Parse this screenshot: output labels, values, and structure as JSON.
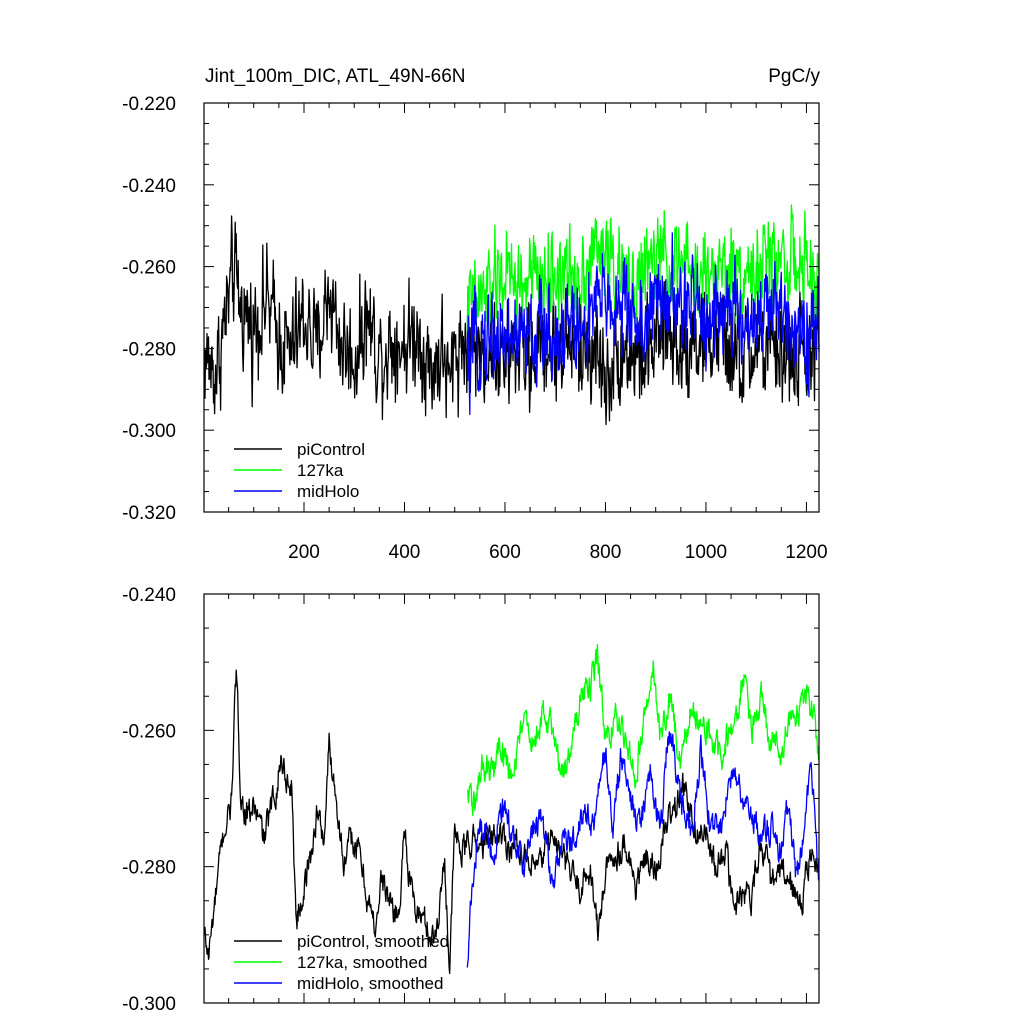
{
  "chart_data": [
    {
      "type": "line",
      "title": "Jint_100m_DIC, ATL_49N-66N",
      "units": "PgC/y",
      "xlim": [
        1,
        1225
      ],
      "ylim": [
        -0.32,
        -0.22
      ],
      "xticks": [
        "200",
        "400",
        "600",
        "800",
        "1000",
        "1200"
      ],
      "yticks": [
        "-0.220",
        "-0.240",
        "-0.260",
        "-0.280",
        "-0.300",
        "-0.320"
      ],
      "legend_position": "bottom-left",
      "series": [
        {
          "name": "piControl",
          "color": "#000000",
          "x_range": [
            1,
            1225
          ],
          "x": [
            1,
            25,
            50,
            60,
            75,
            100,
            125,
            150,
            175,
            200,
            225,
            250,
            275,
            300,
            325,
            350,
            375,
            400,
            425,
            450,
            475,
            490,
            500,
            525,
            550,
            575,
            600,
            625,
            650,
            675,
            700,
            725,
            750,
            775,
            800,
            825,
            850,
            875,
            900,
            925,
            950,
            975,
            1000,
            1025,
            1050,
            1075,
            1100,
            1125,
            1150,
            1175,
            1200,
            1225
          ],
          "values": [
            -0.282,
            -0.286,
            -0.268,
            -0.262,
            -0.27,
            -0.275,
            -0.268,
            -0.277,
            -0.281,
            -0.272,
            -0.28,
            -0.266,
            -0.279,
            -0.283,
            -0.272,
            -0.282,
            -0.278,
            -0.279,
            -0.276,
            -0.285,
            -0.281,
            -0.29,
            -0.28,
            -0.278,
            -0.281,
            -0.28,
            -0.284,
            -0.279,
            -0.283,
            -0.278,
            -0.281,
            -0.278,
            -0.282,
            -0.279,
            -0.287,
            -0.28,
            -0.281,
            -0.283,
            -0.279,
            -0.276,
            -0.28,
            -0.277,
            -0.279,
            -0.276,
            -0.282,
            -0.284,
            -0.279,
            -0.282,
            -0.281,
            -0.283,
            -0.28,
            -0.281
          ],
          "noise": 0.012
        },
        {
          "name": "127ka",
          "color": "#00ff00",
          "x_range": [
            525,
            1225
          ],
          "x": [
            525,
            550,
            575,
            600,
            625,
            650,
            675,
            700,
            725,
            750,
            775,
            800,
            825,
            850,
            875,
            900,
            925,
            950,
            975,
            1000,
            1025,
            1050,
            1075,
            1100,
            1125,
            1150,
            1175,
            1200,
            1225
          ],
          "values": [
            -0.27,
            -0.268,
            -0.265,
            -0.262,
            -0.265,
            -0.263,
            -0.263,
            -0.262,
            -0.262,
            -0.262,
            -0.257,
            -0.256,
            -0.262,
            -0.265,
            -0.262,
            -0.258,
            -0.259,
            -0.26,
            -0.262,
            -0.262,
            -0.26,
            -0.261,
            -0.26,
            -0.262,
            -0.258,
            -0.257,
            -0.259,
            -0.262,
            -0.264
          ],
          "noise": 0.01
        },
        {
          "name": "midHolo",
          "color": "#0000ff",
          "x_range": [
            525,
            1225
          ],
          "x": [
            525,
            550,
            575,
            600,
            625,
            650,
            675,
            700,
            725,
            750,
            775,
            800,
            825,
            850,
            875,
            900,
            925,
            950,
            975,
            1000,
            1025,
            1050,
            1075,
            1100,
            1125,
            1150,
            1175,
            1200,
            1225
          ],
          "values": [
            -0.285,
            -0.278,
            -0.276,
            -0.277,
            -0.277,
            -0.278,
            -0.276,
            -0.277,
            -0.273,
            -0.276,
            -0.272,
            -0.267,
            -0.27,
            -0.271,
            -0.274,
            -0.27,
            -0.267,
            -0.271,
            -0.269,
            -0.272,
            -0.27,
            -0.271,
            -0.275,
            -0.271,
            -0.272,
            -0.271,
            -0.272,
            -0.275,
            -0.277
          ],
          "noise": 0.011
        }
      ]
    },
    {
      "type": "line",
      "title": "",
      "xlim": [
        1,
        1225
      ],
      "ylim": [
        -0.3,
        -0.24
      ],
      "yticks": [
        "-0.240",
        "-0.260",
        "-0.280",
        "-0.300"
      ],
      "legend_position": "bottom-left",
      "series": [
        {
          "name": "piControl, smoothed",
          "color": "#000000",
          "x": [
            1,
            10,
            25,
            40,
            55,
            65,
            75,
            90,
            100,
            120,
            140,
            155,
            170,
            175,
            185,
            200,
            215,
            225,
            240,
            250,
            265,
            280,
            295,
            310,
            325,
            340,
            355,
            375,
            390,
            400,
            410,
            420,
            440,
            460,
            480,
            490,
            500,
            515,
            530,
            550,
            570,
            590,
            610,
            630,
            650,
            670,
            690,
            710,
            730,
            750,
            770,
            785,
            800,
            820,
            840,
            860,
            880,
            900,
            920,
            940,
            960,
            980,
            1000,
            1020,
            1040,
            1055,
            1070,
            1090,
            1110,
            1130,
            1150,
            1170,
            1190,
            1210,
            1225
          ],
          "values": [
            -0.29,
            -0.293,
            -0.284,
            -0.275,
            -0.271,
            -0.252,
            -0.27,
            -0.273,
            -0.271,
            -0.276,
            -0.27,
            -0.264,
            -0.268,
            -0.268,
            -0.288,
            -0.283,
            -0.278,
            -0.272,
            -0.276,
            -0.262,
            -0.27,
            -0.28,
            -0.276,
            -0.278,
            -0.284,
            -0.289,
            -0.282,
            -0.286,
            -0.287,
            -0.273,
            -0.282,
            -0.286,
            -0.288,
            -0.291,
            -0.279,
            -0.295,
            -0.275,
            -0.278,
            -0.276,
            -0.277,
            -0.276,
            -0.275,
            -0.277,
            -0.277,
            -0.281,
            -0.28,
            -0.275,
            -0.278,
            -0.281,
            -0.283,
            -0.28,
            -0.29,
            -0.281,
            -0.278,
            -0.276,
            -0.283,
            -0.279,
            -0.281,
            -0.274,
            -0.271,
            -0.268,
            -0.275,
            -0.275,
            -0.281,
            -0.277,
            -0.287,
            -0.283,
            -0.284,
            -0.276,
            -0.283,
            -0.281,
            -0.283,
            -0.286,
            -0.277,
            -0.281
          ]
        },
        {
          "name": "127ka, smoothed",
          "color": "#00ff00",
          "x": [
            525,
            540,
            555,
            575,
            595,
            615,
            635,
            655,
            675,
            695,
            715,
            735,
            755,
            770,
            785,
            800,
            820,
            840,
            860,
            880,
            895,
            910,
            930,
            950,
            970,
            990,
            1010,
            1030,
            1045,
            1060,
            1075,
            1090,
            1110,
            1130,
            1150,
            1165,
            1180,
            1200,
            1215,
            1225
          ],
          "values": [
            -0.269,
            -0.271,
            -0.265,
            -0.267,
            -0.262,
            -0.268,
            -0.258,
            -0.262,
            -0.258,
            -0.26,
            -0.266,
            -0.262,
            -0.254,
            -0.254,
            -0.249,
            -0.262,
            -0.258,
            -0.261,
            -0.266,
            -0.256,
            -0.251,
            -0.261,
            -0.255,
            -0.266,
            -0.256,
            -0.26,
            -0.261,
            -0.264,
            -0.26,
            -0.258,
            -0.252,
            -0.26,
            -0.256,
            -0.262,
            -0.264,
            -0.258,
            -0.257,
            -0.255,
            -0.257,
            -0.264
          ]
        },
        {
          "name": "midHolo, smoothed",
          "color": "#0000ff",
          "x": [
            525,
            535,
            545,
            560,
            575,
            595,
            615,
            635,
            655,
            675,
            695,
            715,
            735,
            755,
            775,
            790,
            800,
            815,
            830,
            850,
            870,
            890,
            910,
            925,
            935,
            950,
            970,
            990,
            1010,
            1030,
            1050,
            1070,
            1090,
            1110,
            1130,
            1150,
            1165,
            1180,
            1195,
            1210,
            1225
          ],
          "values": [
            -0.295,
            -0.283,
            -0.276,
            -0.274,
            -0.279,
            -0.272,
            -0.275,
            -0.28,
            -0.275,
            -0.273,
            -0.283,
            -0.276,
            -0.277,
            -0.272,
            -0.274,
            -0.268,
            -0.263,
            -0.275,
            -0.264,
            -0.27,
            -0.275,
            -0.265,
            -0.275,
            -0.259,
            -0.263,
            -0.27,
            -0.275,
            -0.263,
            -0.274,
            -0.273,
            -0.267,
            -0.27,
            -0.273,
            -0.275,
            -0.274,
            -0.278,
            -0.27,
            -0.282,
            -0.275,
            -0.266,
            -0.282
          ]
        }
      ]
    }
  ]
}
